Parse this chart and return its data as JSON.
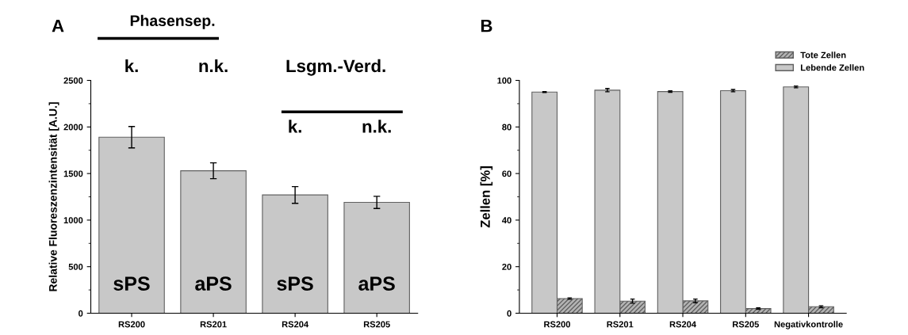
{
  "chart_data": [
    {
      "type": "bar",
      "title": "A",
      "ylabel": "Relative Fluoreszenzintensität [A.U.]",
      "categories": [
        "RS200",
        "RS201",
        "RS204",
        "RS205"
      ],
      "values": [
        1890,
        1530,
        1270,
        1190
      ],
      "errors": [
        115,
        85,
        90,
        65
      ],
      "color": "#c8c8c8",
      "ylim": [
        0,
        2500
      ],
      "yticks": [
        0,
        500,
        1000,
        1500,
        2000,
        2500
      ],
      "grid": false,
      "annotations": [
        "Phasensep.",
        "k.",
        "n.k.",
        "Lsgm.-Verd.",
        "k.",
        "n.k.",
        "sPS",
        "aPS",
        "sPS",
        "aPS"
      ]
    },
    {
      "type": "bar",
      "title": "B",
      "ylabel": "Zellen [%]",
      "categories": [
        "RS200",
        "RS201",
        "RS204",
        "RS205",
        "Negativkontrolle"
      ],
      "ylim": [
        0,
        100
      ],
      "yticks": [
        0,
        20,
        40,
        60,
        80,
        100
      ],
      "grid": false,
      "legend": "top right",
      "series": [
        {
          "name": "Tote Zellen",
          "color": "#606060",
          "values": [
            6.3,
            5.2,
            5.3,
            2.0,
            2.8
          ],
          "errors": [
            0.3,
            0.9,
            0.8,
            0.3,
            0.4
          ]
        },
        {
          "name": "Lebende Zellen",
          "color": "#c8c8c8",
          "values": [
            95.0,
            95.8,
            95.2,
            95.6,
            97.2
          ],
          "errors": [
            0.2,
            0.7,
            0.3,
            0.5,
            0.4
          ]
        }
      ]
    }
  ]
}
